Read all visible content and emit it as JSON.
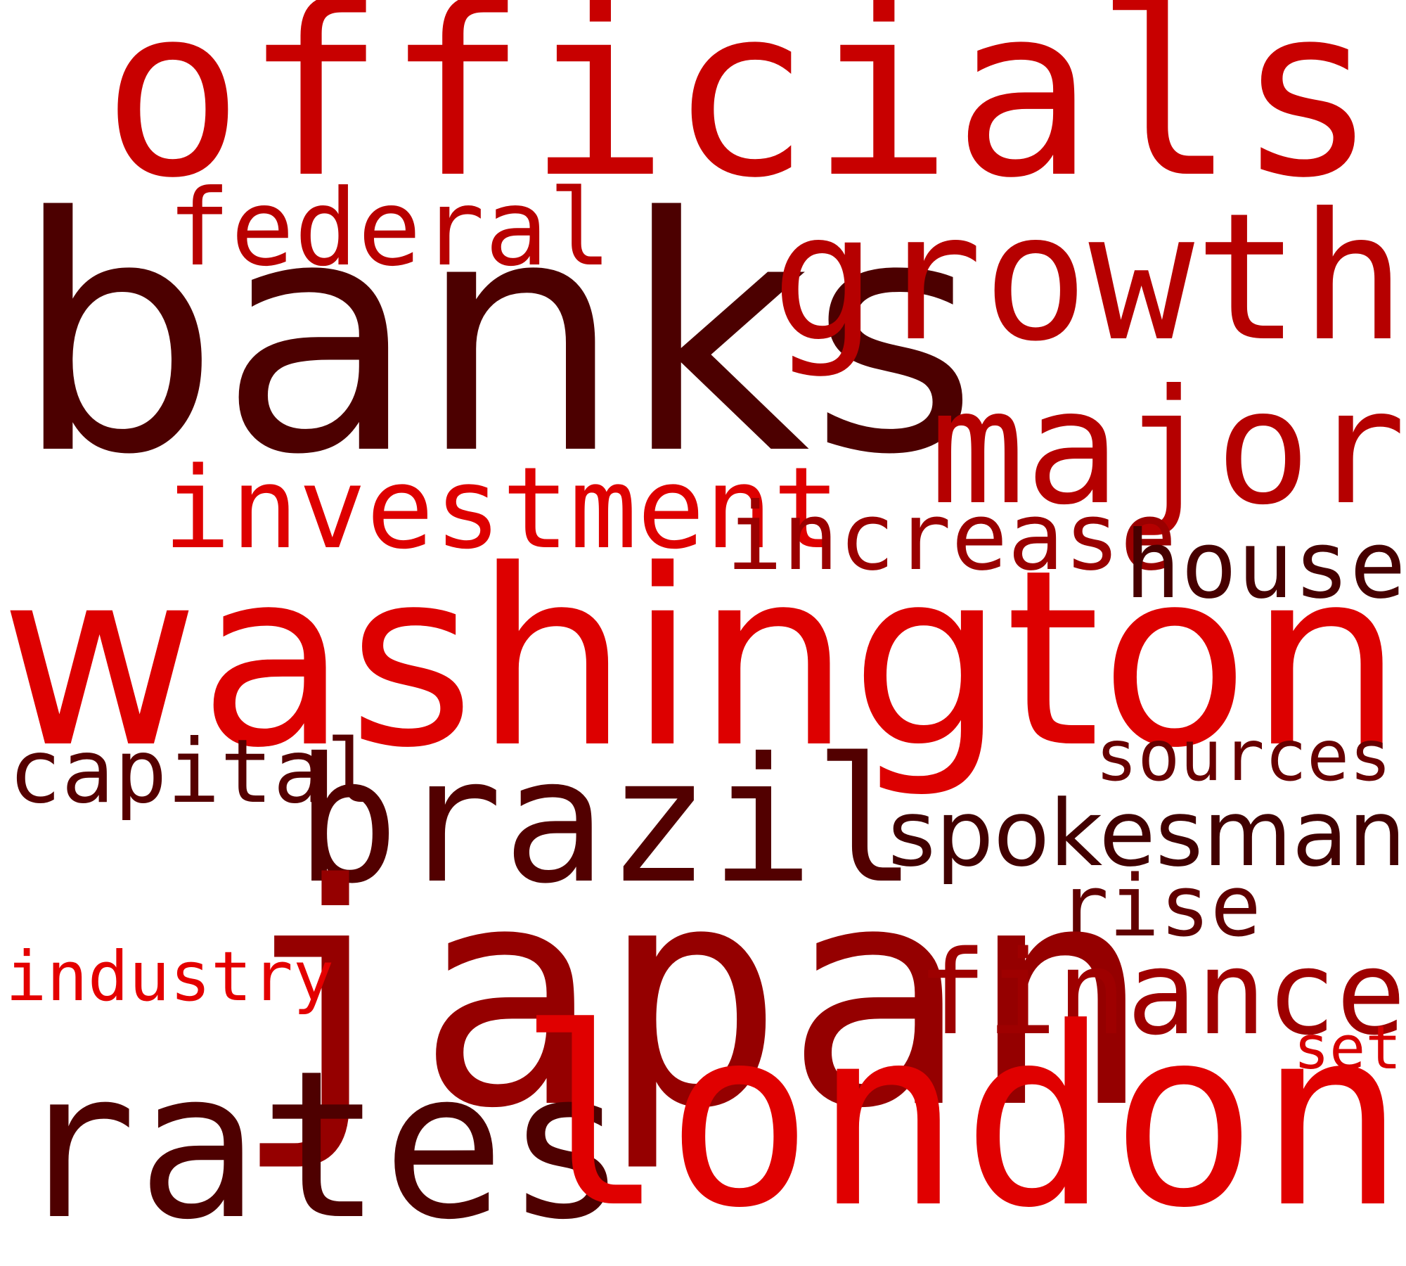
{
  "words": [
    {
      "text": "officials",
      "color": "#c80000",
      "mono": true
    },
    {
      "text": "banks",
      "color": "#4c0000",
      "mono": false
    },
    {
      "text": "federal",
      "color": "#b80000",
      "mono": true
    },
    {
      "text": "growth",
      "color": "#b60000",
      "mono": true
    },
    {
      "text": "major",
      "color": "#b50000",
      "mono": true
    },
    {
      "text": "investment",
      "color": "#de0000",
      "mono": true
    },
    {
      "text": "increase",
      "color": "#9a0000",
      "mono": true
    },
    {
      "text": "house",
      "color": "#470000",
      "mono": true
    },
    {
      "text": "washington",
      "color": "#dd0000",
      "mono": false
    },
    {
      "text": "capital",
      "color": "#560000",
      "mono": true
    },
    {
      "text": "sources",
      "color": "#680000",
      "mono": true
    },
    {
      "text": "brazil",
      "color": "#520000",
      "mono": true
    },
    {
      "text": "spokesman",
      "color": "#420000",
      "mono": false
    },
    {
      "text": "rise",
      "color": "#610000",
      "mono": true
    },
    {
      "text": "japan",
      "color": "#950000",
      "mono": true
    },
    {
      "text": "industry",
      "color": "#e40000",
      "mono": true
    },
    {
      "text": "finance",
      "color": "#9e0000",
      "mono": true
    },
    {
      "text": "set",
      "color": "#d60000",
      "mono": true
    },
    {
      "text": "rates",
      "color": "#4e0000",
      "mono": true
    },
    {
      "text": "london",
      "color": "#e00000",
      "mono": true
    }
  ]
}
